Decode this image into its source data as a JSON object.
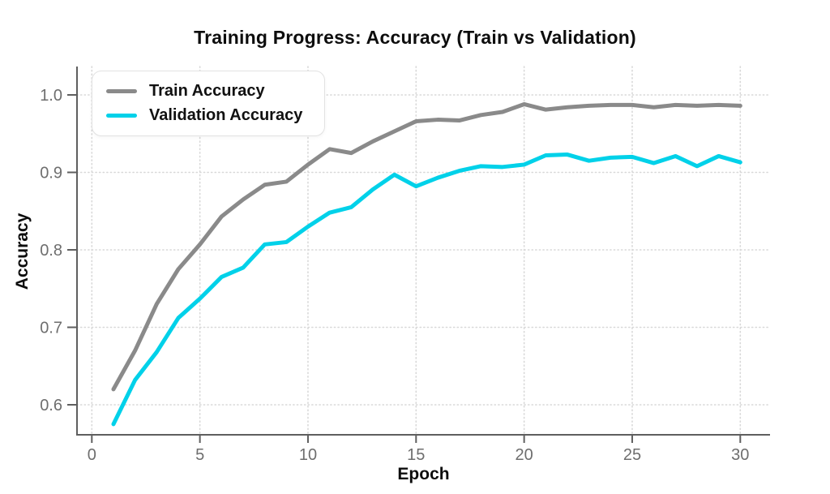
{
  "chart_data": {
    "type": "line",
    "title": "Training Progress: Accuracy (Train vs Validation)",
    "xlabel": "Epoch",
    "ylabel": "Accuracy",
    "x": [
      1,
      2,
      3,
      4,
      5,
      6,
      7,
      8,
      9,
      10,
      11,
      12,
      13,
      14,
      15,
      16,
      17,
      18,
      19,
      20,
      21,
      22,
      23,
      24,
      25,
      26,
      27,
      28,
      29,
      30
    ],
    "series": [
      {
        "name": "Train Accuracy",
        "color": "#8a8a8a",
        "values": [
          0.62,
          0.67,
          0.73,
          0.775,
          0.807,
          0.843,
          0.865,
          0.884,
          0.888,
          0.91,
          0.93,
          0.925,
          0.94,
          0.953,
          0.966,
          0.968,
          0.967,
          0.974,
          0.978,
          0.988,
          0.981,
          0.984,
          0.986,
          0.987,
          0.987,
          0.984,
          0.987,
          0.986,
          0.987,
          0.986
        ]
      },
      {
        "name": "Validation Accuracy",
        "color": "#00d1e9",
        "values": [
          0.575,
          0.632,
          0.668,
          0.712,
          0.737,
          0.765,
          0.777,
          0.807,
          0.81,
          0.83,
          0.848,
          0.855,
          0.878,
          0.897,
          0.882,
          0.893,
          0.902,
          0.908,
          0.907,
          0.91,
          0.922,
          0.923,
          0.915,
          0.919,
          0.92,
          0.912,
          0.921,
          0.908,
          0.921,
          0.913
        ]
      }
    ],
    "x_ticks": [
      0,
      5,
      10,
      15,
      20,
      25,
      30
    ],
    "y_ticks": [
      0.6,
      0.7,
      0.8,
      0.9,
      1.0
    ],
    "xlim": [
      -0.7,
      31.4
    ],
    "ylim": [
      0.562,
      1.037
    ],
    "grid": "dotted",
    "legend_position": "top-left"
  },
  "styles": {
    "background": "#ffffff",
    "axis_color": "#5f5f5f",
    "tick_label_color": "#6e6e6e",
    "grid_color": "#d8d8d8",
    "title_color": "#0d0d0d",
    "line_width": 5
  }
}
